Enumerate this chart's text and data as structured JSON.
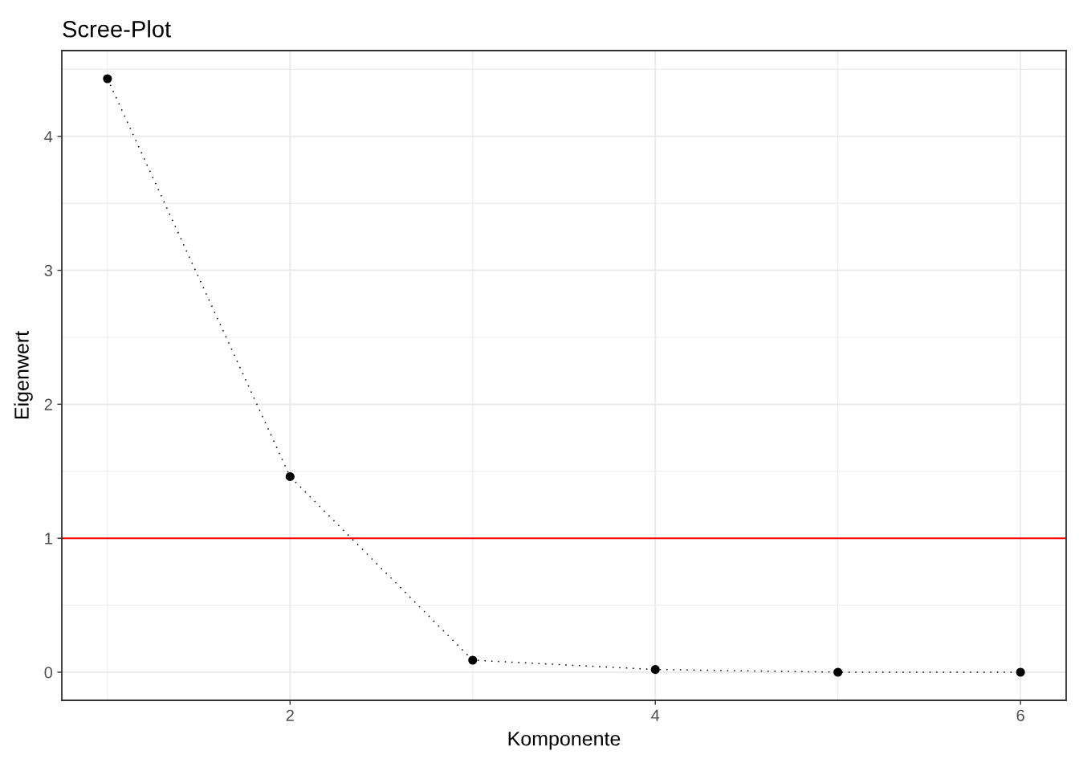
{
  "chart_data": {
    "type": "line",
    "title": "Scree-Plot",
    "xlabel": "Komponente",
    "ylabel": "Eigenwert",
    "x": [
      1,
      2,
      3,
      4,
      5,
      6
    ],
    "series": [
      {
        "values": [
          4.43,
          1.46,
          0.09,
          0.02,
          0,
          0
        ],
        "color": "#000000"
      }
    ],
    "xlim": [
      0.75,
      6.25
    ],
    "ylim": [
      -0.21,
      4.64
    ],
    "xticks": [
      2,
      4,
      6
    ],
    "yticks": [
      0,
      1,
      2,
      3,
      4
    ],
    "grid": true,
    "marker": "circle",
    "line_style": "dotted",
    "ref_lines": [
      {
        "axis": "y",
        "value": 1,
        "color": "#ff0000"
      }
    ]
  }
}
